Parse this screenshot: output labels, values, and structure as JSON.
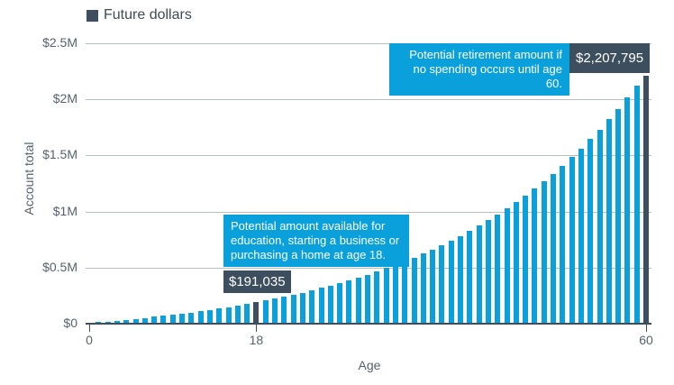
{
  "legend": {
    "label": "Future dollars",
    "color": "#3d4f5e"
  },
  "axes": {
    "y_title": "Account total",
    "x_title": "Age",
    "y_ticks": [
      "$0",
      "$0.5M",
      "$1M",
      "$1.5M",
      "$2M",
      "$2.5M"
    ],
    "x_ticks": [
      "0",
      "18",
      "60"
    ]
  },
  "annotations": {
    "age18_note": "Potential amount available for education, starting a business or purchasing a home at age 18.",
    "age18_value": "$191,035",
    "age60_note": "Potential retirement amount if no spending occurs until age 60.",
    "age60_value": "$2,207,795"
  },
  "colors": {
    "bar": "#0aa0dc",
    "highlight": "#3d4f5e",
    "grid": "#b8bec4"
  },
  "chart_data": {
    "type": "bar",
    "title": "Future dollars",
    "xlabel": "Age",
    "ylabel": "Account total",
    "ylim": [
      0,
      2500000
    ],
    "grid": true,
    "legend_position": "top-left",
    "x": [
      0,
      1,
      2,
      3,
      4,
      5,
      6,
      7,
      8,
      9,
      10,
      11,
      12,
      13,
      14,
      15,
      16,
      17,
      18,
      19,
      20,
      21,
      22,
      23,
      24,
      25,
      26,
      27,
      28,
      29,
      30,
      31,
      32,
      33,
      34,
      35,
      36,
      37,
      38,
      39,
      40,
      41,
      42,
      43,
      44,
      45,
      46,
      47,
      48,
      49,
      50,
      51,
      52,
      53,
      54,
      55,
      56,
      57,
      58,
      59,
      60
    ],
    "highlighted": [
      18,
      60
    ],
    "series": [
      {
        "name": "Future dollars",
        "values": [
          6350,
          13010,
          19990,
          27310,
          34990,
          43040,
          51480,
          60330,
          69610,
          79340,
          89540,
          100240,
          111460,
          123220,
          135550,
          148480,
          162040,
          176250,
          191035,
          206730,
          223140,
          240340,
          258380,
          277300,
          297130,
          317930,
          339740,
          362610,
          386590,
          411740,
          438100,
          465740,
          494730,
          525120,
          556980,
          590390,
          625420,
          662150,
          700660,
          741040,
          783380,
          827770,
          874310,
          923110,
          974280,
          1027930,
          1084180,
          1143160,
          1205000,
          1269840,
          1337820,
          1409100,
          1483830,
          1562190,
          1644350,
          1730500,
          1820820,
          1915520,
          2014810,
          2118920,
          2207795
        ]
      }
    ],
    "annotations": [
      {
        "x": 18,
        "value": "$191,035",
        "text": "Potential amount available for education, starting a business or purchasing a home at age 18."
      },
      {
        "x": 60,
        "value": "$2,207,795",
        "text": "Potential retirement amount if no spending occurs until age 60."
      }
    ]
  }
}
